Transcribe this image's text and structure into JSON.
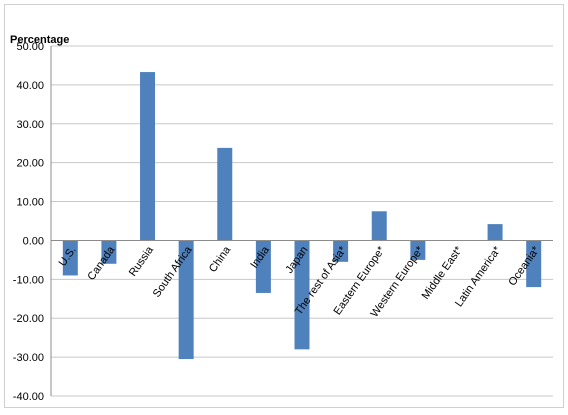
{
  "chart_data": {
    "type": "bar",
    "title": "",
    "xlabel": "",
    "ylabel": "Percentage",
    "ylim": [
      -40,
      50
    ],
    "yticks": [
      "50.00",
      "40.00",
      "30.00",
      "20.00",
      "10.00",
      "0.00",
      "-10.00",
      "-20.00",
      "-30.00",
      "-40.00"
    ],
    "ytick_values": [
      50,
      40,
      30,
      20,
      10,
      0,
      -10,
      -20,
      -30,
      -40
    ],
    "grid": "horizontal",
    "legend": "none",
    "bar_color": "#4f81bd",
    "categories": [
      "U.S.",
      "Canada",
      "Russia",
      "South Africa",
      "China",
      "India",
      "Japan",
      "The rest of Asia*",
      "Eastern Europe*",
      "Western Europe*",
      "Middle East*",
      "Latin America*",
      "Oceania*"
    ],
    "values": [
      -9.0,
      -6.0,
      43.3,
      -30.5,
      23.8,
      -13.5,
      -28.0,
      -5.5,
      7.5,
      -5.0,
      0.0,
      4.2,
      -12.0
    ]
  }
}
